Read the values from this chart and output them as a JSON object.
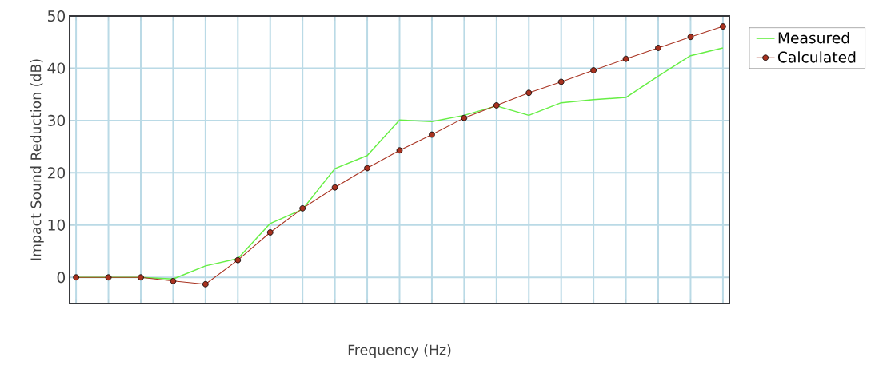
{
  "chart_data": {
    "type": "line",
    "xlabel": "Frequency (Hz)",
    "ylabel": "Impact Sound Reduction (dB)",
    "categories": [
      null,
      null,
      null,
      null,
      null,
      null,
      null,
      null,
      null,
      null,
      null,
      null,
      null,
      null,
      null,
      null,
      null,
      null,
      null,
      null,
      null
    ],
    "series": [
      {
        "name": "Measured",
        "color": "#66ee44",
        "marker": "none",
        "values": [
          0,
          0,
          0,
          -0.3,
          2.2,
          3.6,
          10.3,
          13.0,
          20.8,
          23.3,
          30.1,
          29.8,
          31.0,
          32.8,
          31.0,
          33.4,
          34.0,
          34.4,
          38.5,
          42.4,
          43.9
        ]
      },
      {
        "name": "Calculated",
        "color": "#a83220",
        "marker": "circle",
        "values": [
          0,
          0,
          0,
          -0.7,
          -1.3,
          3.3,
          8.6,
          13.2,
          17.2,
          20.9,
          24.3,
          27.3,
          30.5,
          32.9,
          35.3,
          37.4,
          39.6,
          41.8,
          43.9,
          46.0,
          48.0
        ]
      }
    ],
    "ylim": [
      -5,
      50
    ],
    "yticks": [
      0,
      10,
      20,
      30,
      40,
      50
    ],
    "grid": true,
    "legend": "top right",
    "line_style": "solid"
  }
}
